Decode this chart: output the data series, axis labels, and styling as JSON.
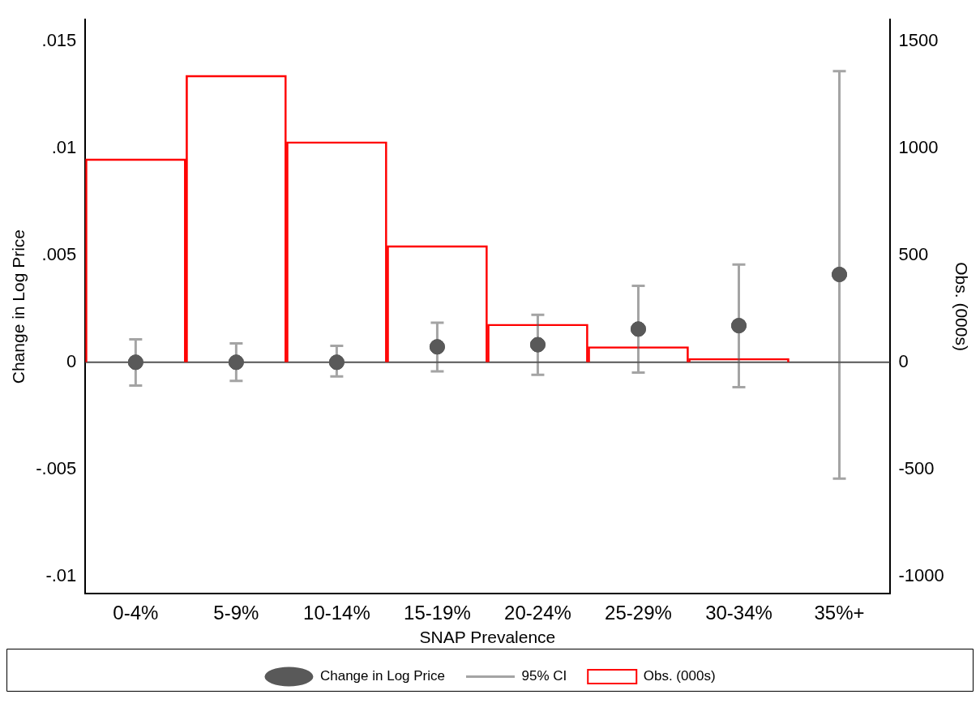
{
  "chart_data": {
    "type": "bar",
    "xlabel": "SNAP Prevalence",
    "ylabel": "Change in Log Price",
    "y2label": "Obs. (000s)",
    "categories": [
      "0-4%",
      "5-9%",
      "10-14%",
      "15-19%",
      "20-24%",
      "25-29%",
      "30-34%",
      "35%+"
    ],
    "series": [
      {
        "name": "Obs. (000s)",
        "axis": "y2",
        "color": "#ff0000",
        "values": [
          950,
          1340,
          1030,
          545,
          178,
          73,
          18,
          0
        ]
      },
      {
        "name": "Change in Log Price",
        "type": "scatter",
        "axis": "y",
        "color": "#595959",
        "marker": "circle",
        "values": [
          0,
          0,
          0,
          0.00072,
          0.00082,
          0.00155,
          0.00171,
          0.0041
        ],
        "errors": [
          [
            -0.00109,
            0.00107
          ],
          [
            -0.00087,
            0.00088
          ],
          [
            -0.00066,
            0.00077
          ],
          [
            -0.00043,
            0.00185
          ],
          [
            -0.00059,
            0.00222
          ],
          [
            -0.00048,
            0.00357
          ],
          [
            -0.00116,
            0.00456
          ],
          [
            -0.00543,
            0.01359
          ]
        ]
      }
    ],
    "annotations": [
      "95% CI"
    ],
    "ylim": [
      -0.0108,
      0.016
    ],
    "yticks": [
      {
        "value": -0.01,
        "label": "-.01"
      },
      {
        "value": -0.005,
        "label": "-.005"
      },
      0,
      {
        "value": 0.005,
        "label": ".005"
      },
      {
        "value": 0.01,
        "label": ".01"
      },
      {
        "value": 0.015,
        "label": ".015"
      }
    ],
    "y2lim": [
      -1080,
      1600
    ],
    "y2ticks": [
      -1000,
      -500,
      0,
      500,
      1000,
      1500
    ],
    "ref_lines": [
      {
        "axis": "y",
        "value": 0,
        "color": "#555555"
      }
    ],
    "grid": false,
    "legend": "bottom"
  }
}
